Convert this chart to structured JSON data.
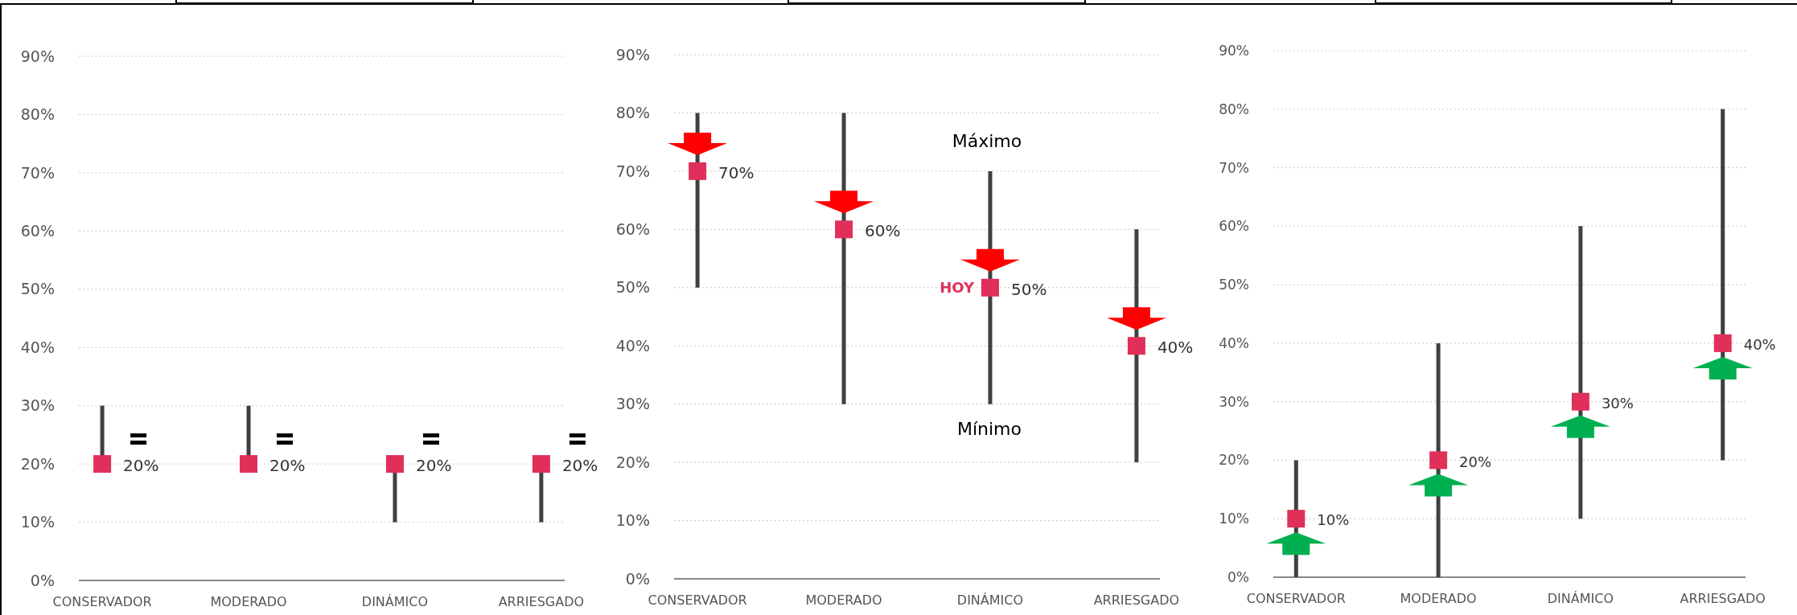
{
  "chart_data": [
    {
      "type": "scatter",
      "categories": [
        "CONSERVADOR",
        "MODERADO",
        "DINÁMICO",
        "ARRIESGADO"
      ],
      "ylim": [
        0,
        90
      ],
      "yticks": [
        {
          "value": 0,
          "label": "0%"
        },
        {
          "value": 10,
          "label": "10%"
        },
        {
          "value": 20,
          "label": "20%"
        },
        {
          "value": 30,
          "label": "30%"
        },
        {
          "value": 40,
          "label": "40%"
        },
        {
          "value": 50,
          "label": "50%"
        },
        {
          "value": 60,
          "label": "60%"
        },
        {
          "value": 70,
          "label": "70%"
        },
        {
          "value": 80,
          "label": "80%"
        },
        {
          "value": 90,
          "label": "90%"
        }
      ],
      "grid": "y",
      "marker": "square",
      "series": [
        {
          "color": "#e0305a",
          "values": [
            20,
            20,
            20,
            20
          ],
          "errors": [
            [
              20,
              30
            ],
            [
              20,
              30
            ],
            [
              10,
              20
            ],
            [
              10,
              20
            ]
          ],
          "value_labels": [
            "20%",
            "20%",
            "20%",
            "20%"
          ]
        }
      ]
    },
    {
      "type": "scatter",
      "categories": [
        "CONSERVADOR",
        "MODERADO",
        "DINÁMICO",
        "ARRIESGADO"
      ],
      "ylim": [
        0,
        90
      ],
      "yticks": [
        {
          "value": 0,
          "label": "0%"
        },
        {
          "value": 10,
          "label": "10%"
        },
        {
          "value": 20,
          "label": "20%"
        },
        {
          "value": 30,
          "label": "30%"
        },
        {
          "value": 40,
          "label": "40%"
        },
        {
          "value": 50,
          "label": "50%"
        },
        {
          "value": 60,
          "label": "60%"
        },
        {
          "value": 70,
          "label": "70%"
        },
        {
          "value": 80,
          "label": "80%"
        },
        {
          "value": 90,
          "label": "90%"
        }
      ],
      "grid": "y",
      "marker": "square",
      "series": [
        {
          "color": "#e0305a",
          "values": [
            70,
            60,
            50,
            40
          ],
          "errors": [
            [
              50,
              80
            ],
            [
              30,
              80
            ],
            [
              30,
              70
            ],
            [
              20,
              60
            ]
          ],
          "value_labels": [
            "70%",
            "60%",
            "50%",
            "40%"
          ]
        }
      ],
      "annotations": [
        "Máximo",
        {
          "text": "HOY",
          "x": "DINÁMICO",
          "y": 50
        },
        "Mínimo"
      ]
    },
    {
      "type": "scatter",
      "categories": [
        "CONSERVADOR",
        "MODERADO",
        "DINÁMICO",
        "ARRIESGADO"
      ],
      "ylim": [
        0,
        90
      ],
      "yticks": [
        {
          "value": 0,
          "label": "0%"
        },
        {
          "value": 10,
          "label": "10%"
        },
        {
          "value": 20,
          "label": "20%"
        },
        {
          "value": 30,
          "label": "30%"
        },
        {
          "value": 40,
          "label": "40%"
        },
        {
          "value": 50,
          "label": "50%"
        },
        {
          "value": 60,
          "label": "60%"
        },
        {
          "value": 70,
          "label": "70%"
        },
        {
          "value": 80,
          "label": "80%"
        },
        {
          "value": 90,
          "label": "90%"
        }
      ],
      "grid": "y",
      "marker": "square",
      "series": [
        {
          "color": "#e0305a",
          "values": [
            10,
            20,
            30,
            40
          ],
          "errors": [
            [
              0,
              20
            ],
            [
              0,
              40
            ],
            [
              10,
              60
            ],
            [
              20,
              80
            ]
          ],
          "value_labels": [
            "10%",
            "20%",
            "30%",
            "40%"
          ]
        }
      ]
    }
  ]
}
